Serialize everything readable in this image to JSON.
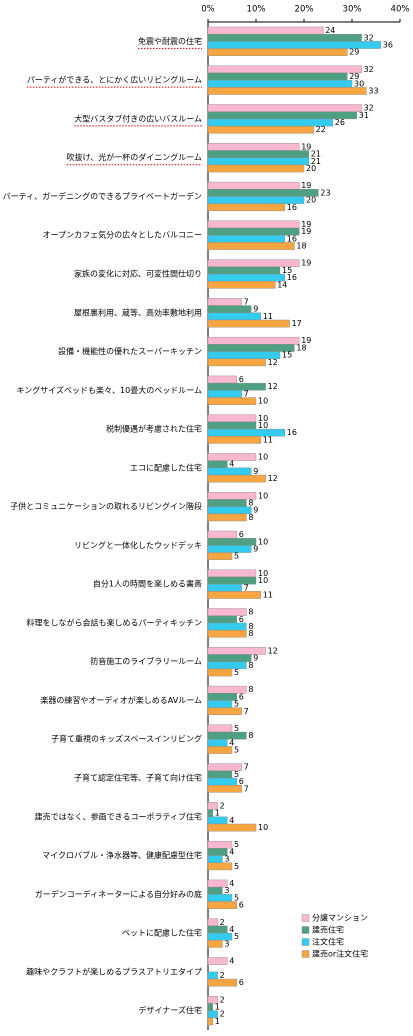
{
  "chart_data": {
    "type": "bar",
    "orientation": "horizontal",
    "categories": [
      "免震や耐震の住宅",
      "パーティができる、とにかく広いリビングルーム",
      "大型バスタブ付きの広いバスルーム",
      "吹抜け、光が一杯のダイニングルーム",
      "パーティ、ガーデニングのできるプライベートガーデン",
      "オープンカフェ気分の広々としたバルコニー",
      "家族の変化に対応、可変性間仕切り",
      "屋根裏利用、蔵等、高効率敷地利用",
      "設備・機能性の優れたスーパーキッチン",
      "キングサイズベッドも楽々、10畳大のベッドルーム",
      "税制優遇が考慮された住宅",
      "エコに配慮した住宅",
      "子供とコミュニケーションの取れるリビングイン階段",
      "リビングと一体化したウッドデッキ",
      "自分1人の時間を楽しめる書斎",
      "料理をしながら会話も楽しめるパーティキッチン",
      "防音施工のライブラリールーム",
      "楽器の練習やオーディオが楽しめるAVルーム",
      "子育て重視のキッズスペースインリビング",
      "子育て認定住宅等、子育て向け住宅",
      "建売ではなく、参画できるコーポラティブ住宅",
      "マイクロバブル・浄水器等、健康配慮型住宅",
      "ガーデンコーディネーターによる自分好みの庭",
      "ペットに配慮した住宅",
      "趣味やクラフトが楽しめるプラスアトリエタイプ",
      "デザイナーズ住宅"
    ],
    "underlined": [
      true,
      true,
      true,
      true,
      false,
      false,
      false,
      false,
      false,
      false,
      false,
      false,
      false,
      false,
      false,
      false,
      false,
      false,
      false,
      false,
      false,
      false,
      false,
      false,
      false,
      false
    ],
    "series": [
      {
        "name": "分譲マンション",
        "color": "#f9b8cf",
        "values": [
          24,
          32,
          32,
          19,
          19,
          19,
          19,
          7,
          19,
          6,
          10,
          10,
          10,
          6,
          10,
          8,
          12,
          8,
          5,
          7,
          2,
          5,
          4,
          2,
          4,
          2
        ]
      },
      {
        "name": "建売住宅",
        "color": "#4f9f83",
        "values": [
          32,
          29,
          31,
          21,
          23,
          19,
          15,
          9,
          18,
          12,
          10,
          4,
          8,
          10,
          10,
          6,
          9,
          6,
          8,
          5,
          1,
          4,
          3,
          4,
          null,
          1
        ]
      },
      {
        "name": "注文住宅",
        "color": "#33ccee",
        "values": [
          36,
          30,
          26,
          21,
          20,
          16,
          16,
          11,
          15,
          7,
          16,
          9,
          9,
          9,
          7,
          8,
          8,
          5,
          4,
          6,
          4,
          3,
          5,
          5,
          2,
          2
        ]
      },
      {
        "name": "建売or注文住宅",
        "color": "#f7a541",
        "values": [
          29,
          33,
          22,
          20,
          16,
          18,
          14,
          17,
          12,
          10,
          11,
          12,
          8,
          5,
          11,
          8,
          5,
          7,
          5,
          7,
          10,
          5,
          6,
          3,
          6,
          1
        ]
      }
    ],
    "xlim": [
      0,
      40
    ],
    "xticks": [
      {
        "value": 0,
        "label": "0%"
      },
      {
        "value": 10,
        "label": "10%"
      },
      {
        "value": 20,
        "label": "20%"
      },
      {
        "value": 30,
        "label": "30%"
      },
      {
        "value": 40,
        "label": "40%"
      }
    ],
    "grid": false,
    "legend": "lower-right"
  }
}
